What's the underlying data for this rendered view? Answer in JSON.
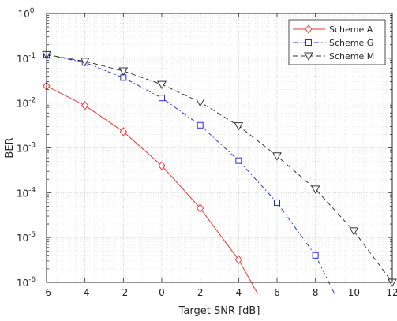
{
  "chart_data": {
    "type": "line",
    "xlabel": "Target SNR [dB]",
    "ylabel": "BER",
    "xlim": [
      -6,
      12
    ],
    "ylim": [
      1e-06,
      1
    ],
    "yscale": "log",
    "grid": "major and minor on",
    "legend_position": "top-right",
    "x_ticks": [
      -6,
      -4,
      -2,
      0,
      2,
      4,
      6,
      8,
      10,
      12
    ],
    "x_tick_labels": [
      "-6",
      "-4",
      "-2",
      "0",
      "2",
      "4",
      "6",
      "8",
      "10",
      "12"
    ],
    "y_ticks": [
      1e-06,
      1e-05,
      0.0001,
      0.001,
      0.01,
      0.1,
      1
    ],
    "y_tick_exponents": [
      "-6",
      "-5",
      "-4",
      "-3",
      "-2",
      "-1",
      "0"
    ],
    "y_tick_base": "10",
    "series": [
      {
        "name": "Scheme A",
        "color": "#e8393a",
        "line_style": "solid",
        "marker": "diamond",
        "x": [
          -6,
          -4,
          -2,
          0,
          2,
          4,
          5
        ],
        "y": [
          0.024,
          0.0088,
          0.0023,
          0.0004,
          4.5e-05,
          3.2e-06,
          5.5e-07
        ],
        "marker_x": [
          -6,
          -4,
          -2,
          0,
          2,
          4
        ]
      },
      {
        "name": "Scheme G",
        "color": "#2b2bd6",
        "line_style": "dash-dot",
        "marker": "square",
        "x": [
          -6,
          -4,
          -2,
          0,
          2,
          4,
          6,
          8,
          9
        ],
        "y": [
          0.12,
          0.08,
          0.037,
          0.013,
          0.0032,
          0.00052,
          6e-05,
          4e-06,
          5.5e-07
        ],
        "marker_x": [
          -6,
          -4,
          -2,
          0,
          2,
          4,
          6,
          8
        ]
      },
      {
        "name": "Scheme M",
        "color": "#333333",
        "line_style": "dashed",
        "marker": "triangle-down",
        "x": [
          -6,
          -4,
          -2,
          0,
          2,
          4,
          6,
          8,
          10,
          12
        ],
        "y": [
          0.12,
          0.085,
          0.052,
          0.026,
          0.0105,
          0.0031,
          0.00066,
          0.00012,
          1.4e-05,
          1e-06
        ],
        "marker_x": [
          -6,
          -4,
          -2,
          0,
          2,
          4,
          6,
          8,
          10,
          12
        ]
      }
    ]
  }
}
